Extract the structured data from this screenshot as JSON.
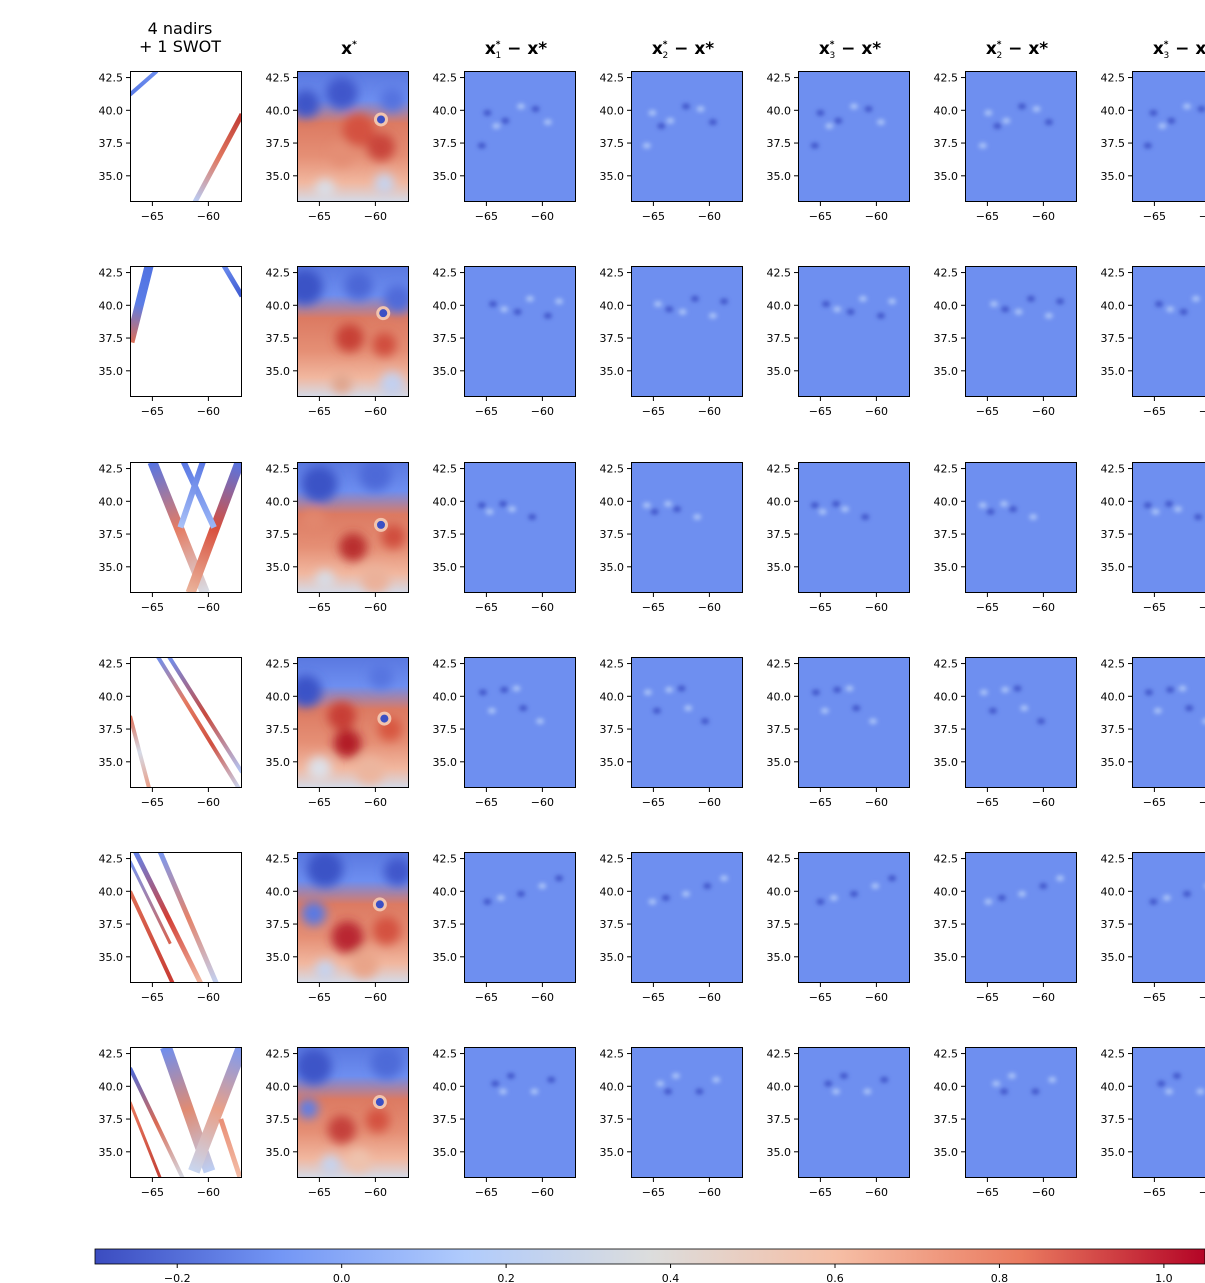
{
  "chart_data": {
    "type": "heatmap",
    "layout": {
      "rows": 6,
      "cols": 7
    },
    "column_titles": [
      {
        "lines": [
          "4 nadirs",
          "+ 1 SWOT"
        ]
      },
      {
        "base": "x",
        "sub": "",
        "sup": "*",
        "rest": ""
      },
      {
        "base": "x",
        "sub": "1",
        "sup": "*",
        "rest": " − x*"
      },
      {
        "base": "x",
        "sub": "2",
        "sup": "*",
        "rest": " − x*"
      },
      {
        "base": "x",
        "sub": "3",
        "sup": "*",
        "rest": " − x*"
      },
      {
        "base": "x",
        "sub": "2",
        "sup": "*",
        "rest": " − x*"
      },
      {
        "base": "x",
        "sub": "3",
        "sup": "*",
        "rest": " − x*"
      }
    ],
    "xlim": [
      -67,
      -57
    ],
    "ylim": [
      33,
      43
    ],
    "xticks": [
      "−65",
      "−60"
    ],
    "xtick_values": [
      -65,
      -60
    ],
    "yticks": [
      "42.5",
      "40.0",
      "37.5",
      "35.0"
    ],
    "ytick_values": [
      42.5,
      40.0,
      37.5,
      35.0
    ],
    "colorbar": {
      "ticks": [
        "−0.2",
        "0.0",
        "0.2",
        "0.4",
        "0.6",
        "0.8",
        "1.0"
      ],
      "tick_values": [
        -0.2,
        0.0,
        0.2,
        0.4,
        0.6,
        0.8,
        1.0
      ],
      "range": [
        -0.3,
        1.05
      ],
      "colormap": "coolwarm",
      "colors": [
        "#3b4cc0",
        "#7396f5",
        "#b0cbfc",
        "#dcdddd",
        "#f6bfa6",
        "#ea7b60",
        "#b40426"
      ]
    },
    "difference_panel_value": 0.0
  }
}
